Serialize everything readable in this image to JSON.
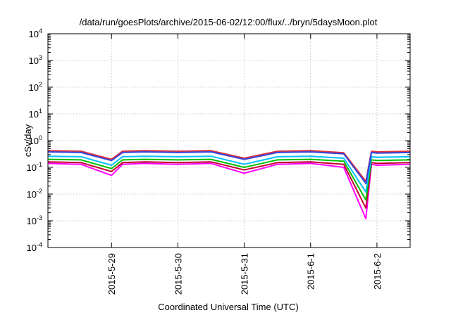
{
  "chart_data": {
    "type": "line",
    "title": "/data/run/goesPlots/archive/2015-06-02/12:00/flux/../bryn/5daysMoon.plot",
    "xlabel": "Coordinated Universal Time (UTC)",
    "ylabel": "cSv/day",
    "xlim": [
      "2015-05-28 01:00",
      "2015-06-02 12:00"
    ],
    "ylim": [
      0.0001,
      10000
    ],
    "y_scale": "log",
    "grid": true,
    "x_ticks": [
      {
        "value": "2015-05-29 00:00",
        "label": "2015-5-29"
      },
      {
        "value": "2015-05-30 00:00",
        "label": "2015-5-30"
      },
      {
        "value": "2015-05-31 00:00",
        "label": "2015-5-31"
      },
      {
        "value": "2015-06-01 00:00",
        "label": "2015-6-1"
      },
      {
        "value": "2015-06-02 00:00",
        "label": "2015-6-2"
      }
    ],
    "y_ticks": [
      {
        "value": 0.0001,
        "base": "10",
        "exp": "-4"
      },
      {
        "value": 0.001,
        "base": "10",
        "exp": "-3"
      },
      {
        "value": 0.01,
        "base": "10",
        "exp": "-2"
      },
      {
        "value": 0.1,
        "base": "10",
        "exp": "-1"
      },
      {
        "value": 1,
        "base": "10",
        "exp": "0"
      },
      {
        "value": 10,
        "base": "10",
        "exp": "1"
      },
      {
        "value": 100,
        "base": "10",
        "exp": "2"
      },
      {
        "value": 1000,
        "base": "10",
        "exp": "3"
      },
      {
        "value": 10000,
        "base": "10",
        "exp": "4"
      }
    ],
    "x": [
      "2015-05-28 01:00",
      "2015-05-28 13:00",
      "2015-05-29 00:00",
      "2015-05-29 04:00",
      "2015-05-29 12:00",
      "2015-05-30 00:00",
      "2015-05-30 12:00",
      "2015-05-31 00:00",
      "2015-05-31 12:00",
      "2015-06-01 00:00",
      "2015-06-01 12:00",
      "2015-06-01 20:00",
      "2015-06-01 22:00",
      "2015-06-02 00:00",
      "2015-06-02 12:00"
    ],
    "series": [
      {
        "color": "#ff00ff",
        "values": [
          0.14,
          0.13,
          0.05,
          0.13,
          0.14,
          0.13,
          0.14,
          0.06,
          0.13,
          0.14,
          0.1,
          0.0012,
          0.13,
          0.12,
          0.13
        ]
      },
      {
        "color": "#c0002a",
        "values": [
          0.16,
          0.15,
          0.07,
          0.15,
          0.16,
          0.15,
          0.16,
          0.08,
          0.15,
          0.16,
          0.13,
          0.003,
          0.15,
          0.14,
          0.15
        ]
      },
      {
        "color": "#00c000",
        "values": [
          0.2,
          0.19,
          0.09,
          0.19,
          0.2,
          0.19,
          0.2,
          0.1,
          0.19,
          0.2,
          0.17,
          0.006,
          0.19,
          0.18,
          0.19
        ]
      },
      {
        "color": "#00bfff",
        "values": [
          0.26,
          0.25,
          0.12,
          0.25,
          0.26,
          0.25,
          0.26,
          0.13,
          0.25,
          0.26,
          0.22,
          0.012,
          0.25,
          0.24,
          0.25
        ]
      },
      {
        "color": "#e0303a",
        "values": [
          0.42,
          0.4,
          0.2,
          0.4,
          0.42,
          0.4,
          0.42,
          0.22,
          0.4,
          0.42,
          0.35,
          0.03,
          0.4,
          0.38,
          0.4
        ]
      },
      {
        "color": "#3344dd",
        "values": [
          0.38,
          0.36,
          0.18,
          0.36,
          0.38,
          0.36,
          0.38,
          0.2,
          0.36,
          0.38,
          0.32,
          0.025,
          0.36,
          0.34,
          0.36
        ]
      }
    ]
  }
}
